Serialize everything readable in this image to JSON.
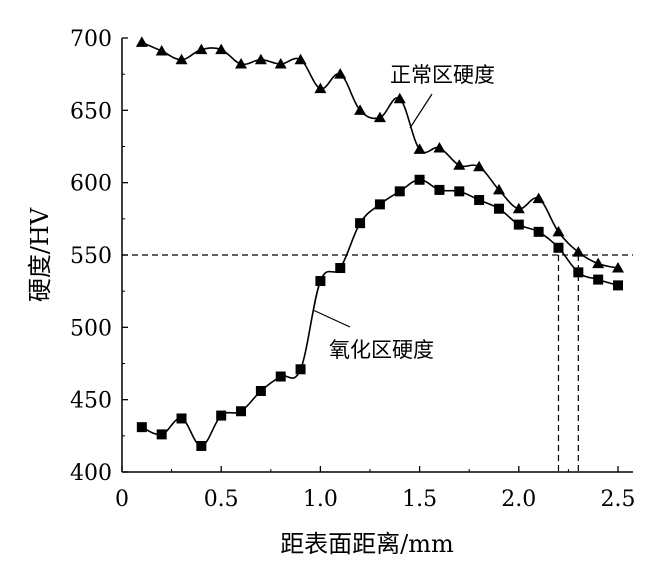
{
  "chart_data": {
    "type": "line",
    "xlabel": "距表面距离/mm",
    "ylabel": "硬度/HV",
    "xlim": [
      0,
      2.5
    ],
    "ylim": [
      400,
      700
    ],
    "x_ticks": [
      "0",
      "0.5",
      "1.0",
      "1.5",
      "2.0",
      "2.5"
    ],
    "y_ticks": [
      "400",
      "450",
      "500",
      "550",
      "600",
      "650",
      "700"
    ],
    "grid": false,
    "reference_line": {
      "y": 550,
      "style": "dashed"
    },
    "drop_lines": [
      {
        "x": 2.2,
        "style": "dashed"
      },
      {
        "x": 2.3,
        "style": "dashed"
      }
    ],
    "series": [
      {
        "name": "正常区硬度",
        "marker": "triangle",
        "color": "#000000",
        "x": [
          0.1,
          0.2,
          0.3,
          0.4,
          0.5,
          0.6,
          0.7,
          0.8,
          0.9,
          1.0,
          1.1,
          1.2,
          1.3,
          1.4,
          1.5,
          1.6,
          1.7,
          1.8,
          1.9,
          2.0,
          2.1,
          2.2,
          2.3,
          2.4,
          2.5
        ],
        "values": [
          697,
          691,
          685,
          692,
          692,
          682,
          685,
          682,
          685,
          665,
          675,
          650,
          645,
          658,
          623,
          624,
          612,
          611,
          595,
          582,
          589,
          566,
          552,
          544,
          541
        ]
      },
      {
        "name": "氧化区硬度",
        "marker": "square",
        "color": "#000000",
        "x": [
          0.1,
          0.2,
          0.3,
          0.4,
          0.5,
          0.6,
          0.7,
          0.8,
          0.9,
          1.0,
          1.1,
          1.2,
          1.3,
          1.4,
          1.5,
          1.6,
          1.7,
          1.8,
          1.9,
          2.0,
          2.1,
          2.2,
          2.3,
          2.4,
          2.5
        ],
        "values": [
          431,
          426,
          437,
          418,
          439,
          442,
          456,
          466,
          471,
          532,
          541,
          572,
          585,
          594,
          602,
          595,
          594,
          588,
          582,
          571,
          566,
          555,
          538,
          533,
          529
        ]
      }
    ],
    "annotations": [
      {
        "text": "正常区硬度",
        "series": 0
      },
      {
        "text": "氧化区硬度",
        "series": 1
      }
    ]
  }
}
